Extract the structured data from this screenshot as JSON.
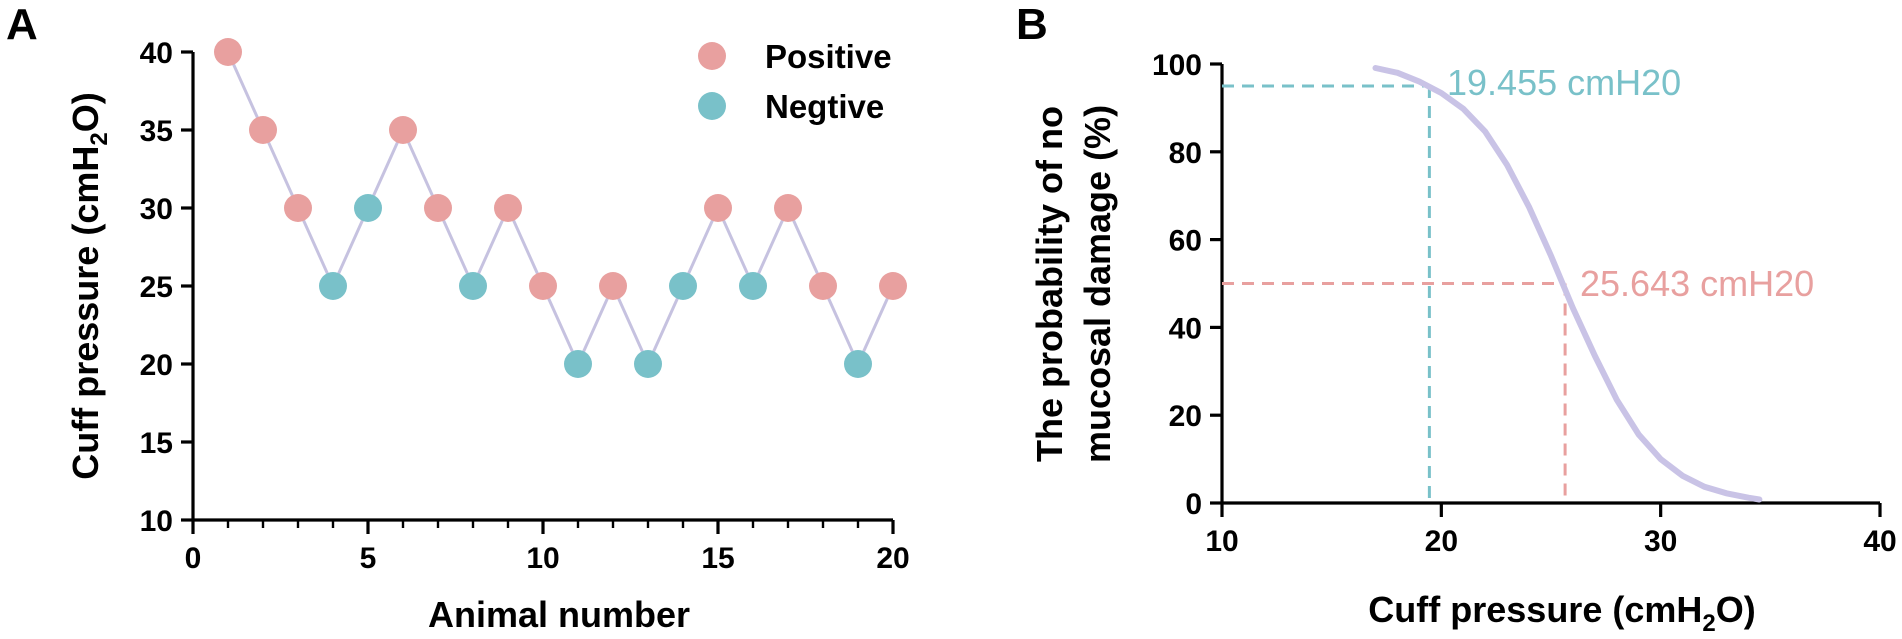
{
  "colors": {
    "positive": "#e8a09f",
    "negative": "#79c1c9",
    "line": "#c6c2e0",
    "curve": "#c9c3e6",
    "axis": "#000000"
  },
  "chart_data": [
    {
      "panel": "A",
      "type": "scatter",
      "title": "",
      "xlabel": "Animal number",
      "ylabel_prefix": "Cuff pressure (cmH",
      "ylabel_sub": "2",
      "ylabel_suffix": "O)",
      "xlim": [
        0,
        20
      ],
      "ylim": [
        10,
        40
      ],
      "xticks": [
        0,
        5,
        10,
        15,
        20
      ],
      "yticks": [
        10,
        15,
        20,
        25,
        30,
        35,
        40
      ],
      "legend": [
        {
          "name": "Positive",
          "key": "positive"
        },
        {
          "name": "Negtive",
          "key": "negative"
        }
      ],
      "legend_position": "top-right",
      "points": [
        {
          "x": 1,
          "y": 40,
          "outcome": "positive"
        },
        {
          "x": 2,
          "y": 35,
          "outcome": "positive"
        },
        {
          "x": 3,
          "y": 30,
          "outcome": "positive"
        },
        {
          "x": 4,
          "y": 25,
          "outcome": "negative"
        },
        {
          "x": 5,
          "y": 30,
          "outcome": "negative"
        },
        {
          "x": 6,
          "y": 35,
          "outcome": "positive"
        },
        {
          "x": 7,
          "y": 30,
          "outcome": "positive"
        },
        {
          "x": 8,
          "y": 25,
          "outcome": "negative"
        },
        {
          "x": 9,
          "y": 30,
          "outcome": "positive"
        },
        {
          "x": 10,
          "y": 25,
          "outcome": "positive"
        },
        {
          "x": 11,
          "y": 20,
          "outcome": "negative"
        },
        {
          "x": 12,
          "y": 25,
          "outcome": "positive"
        },
        {
          "x": 13,
          "y": 20,
          "outcome": "negative"
        },
        {
          "x": 14,
          "y": 25,
          "outcome": "negative"
        },
        {
          "x": 15,
          "y": 30,
          "outcome": "positive"
        },
        {
          "x": 16,
          "y": 25,
          "outcome": "negative"
        },
        {
          "x": 17,
          "y": 30,
          "outcome": "positive"
        },
        {
          "x": 18,
          "y": 25,
          "outcome": "positive"
        },
        {
          "x": 19,
          "y": 20,
          "outcome": "negative"
        },
        {
          "x": 20,
          "y": 25,
          "outcome": "positive"
        }
      ]
    },
    {
      "panel": "B",
      "type": "line",
      "title": "",
      "xlabel_prefix": "Cuff pressure (cmH",
      "xlabel_sub": "2",
      "xlabel_suffix": "O)",
      "ylabel_line1": "The probability of no",
      "ylabel_line2": "mucosal damage (%)",
      "xlim": [
        10,
        40
      ],
      "ylim": [
        0,
        100
      ],
      "xticks": [
        10,
        20,
        30,
        40
      ],
      "yticks": [
        0,
        20,
        40,
        60,
        80,
        100
      ],
      "curve": {
        "x": [
          17,
          18,
          19,
          20,
          21,
          22,
          23,
          24,
          25,
          26,
          27,
          28,
          29,
          30,
          31,
          32,
          33,
          34,
          34.5
        ],
        "y": [
          99.1,
          98.0,
          96.0,
          93.4,
          89.8,
          84.6,
          77.0,
          67.4,
          56.3,
          44.4,
          33.5,
          23.5,
          15.6,
          10.0,
          6.2,
          3.7,
          2.2,
          1.2,
          0.8
        ]
      },
      "annotations": [
        {
          "label": "19.455 cmH20",
          "x": 19.455,
          "y": 95,
          "color_key": "negative"
        },
        {
          "label": "25.643 cmH20",
          "x": 25.643,
          "y": 50,
          "color_key": "positive"
        }
      ]
    }
  ]
}
